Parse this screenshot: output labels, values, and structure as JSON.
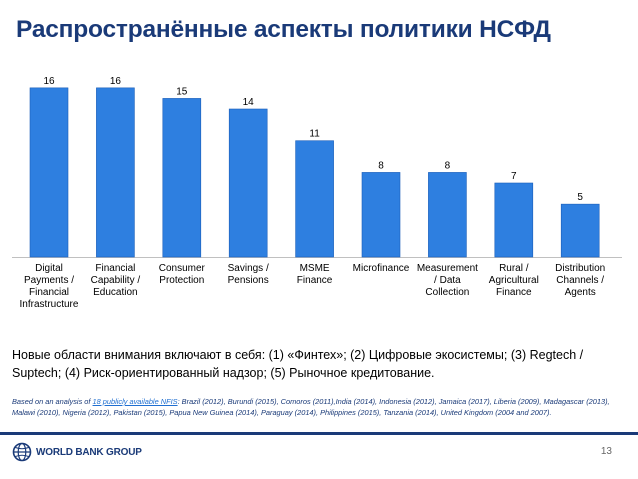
{
  "slide": {
    "title": "Распространённые аспекты политики НСФД",
    "note": "Новые области внимания включают в себя: (1) «Финтех»; (2) Цифровые экосистемы; (3) Regtech / Suptech; (4) Риск-ориентированный надзор; (5) Рыночное кредитование.",
    "source_prefix": "Based on an analysis of ",
    "source_link": "18 publicly available NFIS",
    "source_rest": ": Brazil (2012), Burundi (2015), Comoros (2011),India (2014), Indonesia (2012), Jamaica (2017), Liberia (2009), Madagascar (2013), Malawi (2010), Nigeria (2012), Pakistan (2015), Papua New Guinea (2014), Paraguay (2014), Philippines (2015), Tanzania (2014), United Kingdom (2004 and 2007).",
    "logo_text": "WORLD BANK GROUP",
    "page_number": "13"
  },
  "chart_data": {
    "type": "bar",
    "categories": [
      "Digital\nPayments /\nFinancial\nInfrastructure",
      "Financial\nCapability /\nEducation",
      "Consumer\nProtection",
      "Savings /\nPensions",
      "MSME\nFinance",
      "Microfinance",
      "Measurement\n/ Data\nCollection",
      "Rural /\nAgricultural\nFinance",
      "Distribution\nChannels /\nAgents"
    ],
    "values": [
      16,
      16,
      15,
      14,
      11,
      8,
      8,
      7,
      5
    ],
    "ylim": [
      0,
      17.5
    ],
    "data_labels": true,
    "grid": false,
    "colors": {
      "bar": "#2e7fe0",
      "bar_edge": "#1b5eb8",
      "axis": "#c0c0c0",
      "title": "#1a3a78"
    }
  }
}
